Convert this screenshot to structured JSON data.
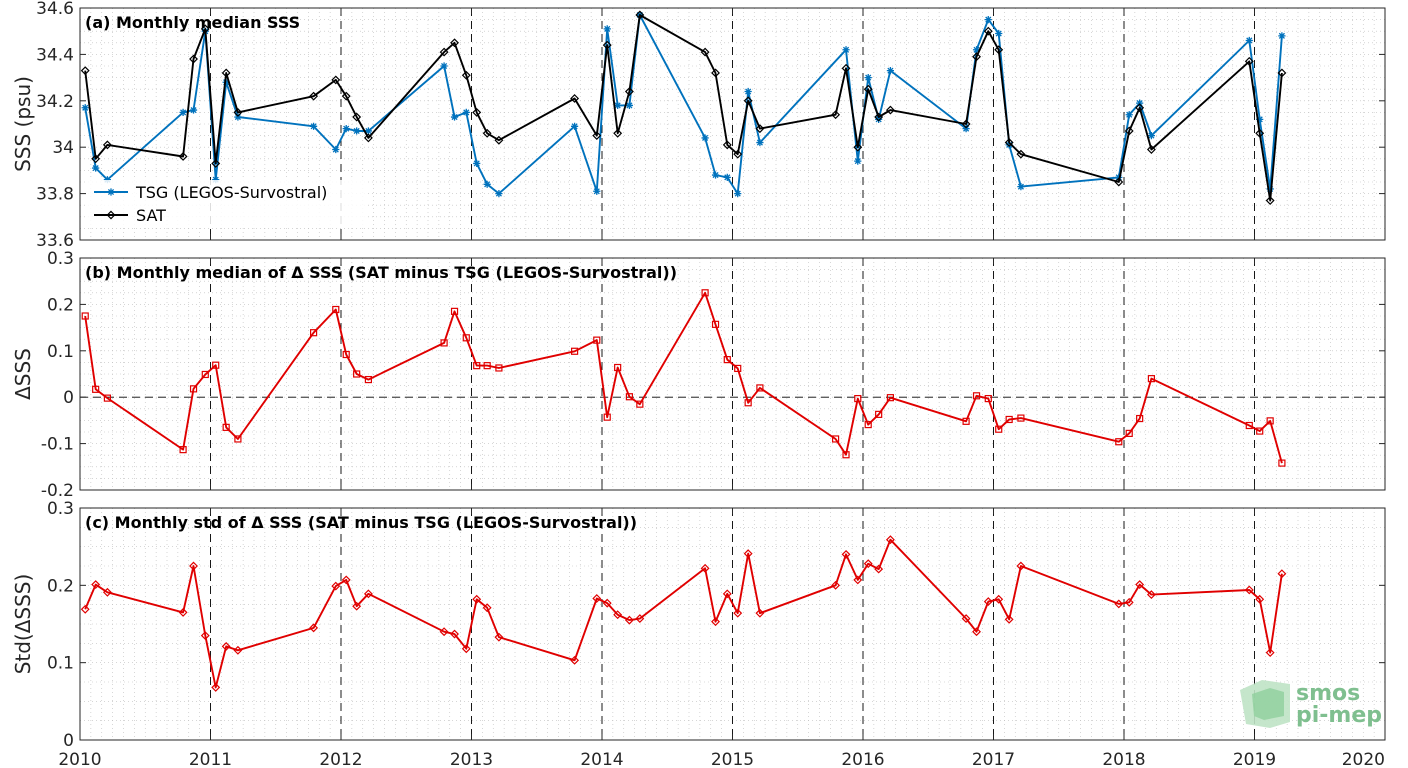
{
  "chart_data": [
    {
      "type": "line",
      "title": "(a) Monthly median SSS",
      "ylabel": "SSS (psu)",
      "xlim": [
        2010,
        2020
      ],
      "ylim": [
        33.6,
        34.6
      ],
      "xticks": [
        "2010",
        "2011",
        "2012",
        "2013",
        "2014",
        "2015",
        "2016",
        "2017",
        "2018",
        "2019",
        "2020"
      ],
      "yticks": [
        "33.6",
        "33.8",
        "34",
        "34.2",
        "34.4",
        "34.6"
      ],
      "grid": true,
      "legend": "lower-left",
      "series": [
        {
          "name": "TSG (LEGOS-Survostral)",
          "color": "#0072BD",
          "marker": "asterisk",
          "x": [
            2010.04,
            2010.12,
            2010.21,
            2010.79,
            2010.87,
            2010.96,
            2011.04,
            2011.12,
            2011.21,
            2011.79,
            2011.96,
            2012.04,
            2012.12,
            2012.21,
            2012.79,
            2012.87,
            2012.96,
            2013.04,
            2013.12,
            2013.21,
            2013.79,
            2013.96,
            2014.04,
            2014.12,
            2014.21,
            2014.29,
            2014.79,
            2014.87,
            2014.96,
            2015.04,
            2015.12,
            2015.21,
            2015.87,
            2015.96,
            2016.04,
            2016.12,
            2016.21,
            2016.79,
            2016.87,
            2016.96,
            2017.04,
            2017.12,
            2017.21,
            2017.96,
            2018.04,
            2018.12,
            2018.21,
            2018.96,
            2019.04,
            2019.12,
            2019.21
          ],
          "y": [
            34.17,
            33.91,
            33.86,
            34.15,
            34.16,
            34.5,
            33.86,
            34.28,
            34.13,
            34.09,
            33.99,
            34.08,
            34.07,
            34.07,
            34.35,
            34.13,
            34.15,
            33.93,
            33.84,
            33.8,
            34.09,
            33.81,
            34.51,
            34.18,
            34.18,
            34.57,
            34.04,
            33.88,
            33.87,
            33.8,
            34.24,
            34.02,
            34.42,
            33.94,
            34.3,
            34.12,
            34.33,
            34.08,
            34.42,
            34.55,
            34.49,
            34.01,
            33.83,
            33.87,
            34.14,
            34.19,
            34.05,
            34.46,
            34.12,
            33.82,
            34.48
          ]
        },
        {
          "name": "SAT",
          "color": "#000000",
          "marker": "diamond",
          "x": [
            2010.04,
            2010.12,
            2010.21,
            2010.79,
            2010.87,
            2010.96,
            2011.04,
            2011.12,
            2011.21,
            2011.79,
            2011.96,
            2012.04,
            2012.12,
            2012.21,
            2012.79,
            2012.87,
            2012.96,
            2013.04,
            2013.12,
            2013.21,
            2013.79,
            2013.96,
            2014.04,
            2014.12,
            2014.21,
            2014.29,
            2014.79,
            2014.87,
            2014.96,
            2015.04,
            2015.12,
            2015.21,
            2015.79,
            2015.87,
            2015.96,
            2016.04,
            2016.12,
            2016.21,
            2016.79,
            2016.87,
            2016.96,
            2017.04,
            2017.12,
            2017.21,
            2017.96,
            2018.04,
            2018.12,
            2018.21,
            2018.96,
            2019.04,
            2019.12,
            2019.21
          ],
          "y": [
            34.33,
            33.95,
            34.01,
            33.96,
            34.38,
            34.51,
            33.93,
            34.32,
            34.15,
            34.22,
            34.29,
            34.22,
            34.13,
            34.04,
            34.41,
            34.45,
            34.31,
            34.15,
            34.06,
            34.03,
            34.21,
            34.05,
            34.44,
            34.06,
            34.24,
            34.57,
            34.41,
            34.32,
            34.01,
            33.97,
            34.2,
            34.08,
            34.14,
            34.34,
            34.0,
            34.25,
            34.13,
            34.16,
            34.1,
            34.39,
            34.5,
            34.42,
            34.02,
            33.97,
            33.85,
            34.07,
            34.17,
            33.99,
            34.37,
            34.06,
            33.77,
            34.32
          ]
        }
      ]
    },
    {
      "type": "line",
      "title": "(b) Monthly median of Δ SSS (SAT minus TSG (LEGOS-Survostral))",
      "ylabel": "ΔSSS",
      "xlim": [
        2010,
        2020
      ],
      "ylim": [
        -0.2,
        0.3
      ],
      "yticks": [
        "-0.2",
        "-0.1",
        "0",
        "0.1",
        "0.2",
        "0.3"
      ],
      "grid": true,
      "zero_line": true,
      "series": [
        {
          "color": "#E00000",
          "marker": "square",
          "x": [
            2010.04,
            2010.12,
            2010.21,
            2010.79,
            2010.87,
            2010.96,
            2011.04,
            2011.12,
            2011.21,
            2011.79,
            2011.96,
            2012.04,
            2012.12,
            2012.21,
            2012.79,
            2012.87,
            2012.96,
            2013.04,
            2013.12,
            2013.21,
            2013.79,
            2013.96,
            2014.04,
            2014.12,
            2014.21,
            2014.29,
            2014.79,
            2014.87,
            2014.96,
            2015.04,
            2015.12,
            2015.21,
            2015.79,
            2015.87,
            2015.96,
            2016.04,
            2016.12,
            2016.21,
            2016.79,
            2016.87,
            2016.96,
            2017.04,
            2017.12,
            2017.21,
            2017.96,
            2018.04,
            2018.12,
            2018.21,
            2018.96,
            2019.04,
            2019.12,
            2019.21
          ],
          "y": [
            0.175,
            0.017,
            -0.002,
            -0.113,
            0.018,
            0.049,
            0.069,
            -0.065,
            -0.09,
            0.139,
            0.189,
            0.092,
            0.05,
            0.038,
            0.117,
            0.185,
            0.128,
            0.068,
            0.068,
            0.063,
            0.099,
            0.123,
            -0.043,
            0.064,
            0.001,
            -0.015,
            0.225,
            0.157,
            0.081,
            0.062,
            -0.012,
            0.02,
            -0.09,
            -0.124,
            -0.003,
            -0.059,
            -0.037,
            -0.001,
            -0.052,
            0.003,
            -0.003,
            -0.069,
            -0.048,
            -0.045,
            -0.096,
            -0.078,
            -0.046,
            0.04,
            -0.061,
            -0.073,
            -0.051,
            -0.142
          ]
        }
      ]
    },
    {
      "type": "line",
      "title": "(c) Monthly std of Δ SSS (SAT minus TSG (LEGOS-Survostral))",
      "ylabel": "Std(ΔSSS)",
      "xlim": [
        2010,
        2020
      ],
      "ylim": [
        0,
        0.3
      ],
      "yticks": [
        "0",
        "0.1",
        "0.2",
        "0.3"
      ],
      "grid": true,
      "series": [
        {
          "color": "#E00000",
          "marker": "diamond",
          "x": [
            2010.04,
            2010.12,
            2010.21,
            2010.79,
            2010.87,
            2010.96,
            2011.04,
            2011.12,
            2011.21,
            2011.79,
            2011.96,
            2012.04,
            2012.12,
            2012.21,
            2012.79,
            2012.87,
            2012.96,
            2013.04,
            2013.12,
            2013.21,
            2013.79,
            2013.96,
            2014.04,
            2014.12,
            2014.21,
            2014.29,
            2014.79,
            2014.87,
            2014.96,
            2015.04,
            2015.12,
            2015.21,
            2015.79,
            2015.87,
            2015.96,
            2016.04,
            2016.12,
            2016.21,
            2016.79,
            2016.87,
            2016.96,
            2017.04,
            2017.12,
            2017.21,
            2017.96,
            2018.04,
            2018.12,
            2018.21,
            2018.96,
            2019.04,
            2019.12,
            2019.21
          ],
          "y": [
            0.169,
            0.201,
            0.191,
            0.165,
            0.225,
            0.135,
            0.068,
            0.121,
            0.116,
            0.145,
            0.199,
            0.207,
            0.173,
            0.189,
            0.14,
            0.137,
            0.118,
            0.182,
            0.171,
            0.133,
            0.103,
            0.183,
            0.177,
            0.162,
            0.155,
            0.157,
            0.222,
            0.153,
            0.189,
            0.164,
            0.241,
            0.164,
            0.2,
            0.24,
            0.207,
            0.228,
            0.221,
            0.259,
            0.157,
            0.14,
            0.179,
            0.182,
            0.156,
            0.225,
            0.176,
            0.178,
            0.201,
            0.188,
            0.194,
            0.182,
            0.113,
            0.215
          ]
        }
      ]
    }
  ],
  "logo": {
    "line1": "smos",
    "line2": "pi-mep"
  }
}
